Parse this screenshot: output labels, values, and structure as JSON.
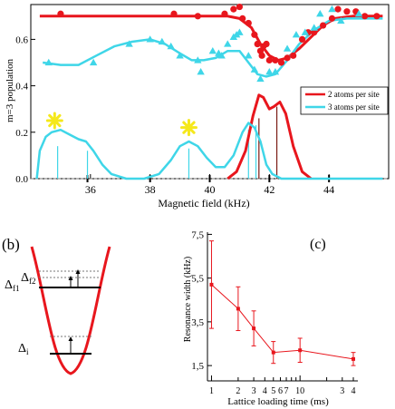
{
  "colors": {
    "red": "#e8161d",
    "cyan": "#3fd6e8",
    "dark_red": "#7a1a14",
    "dashed": "#7a7a7a",
    "star": "#f5e81c"
  },
  "panel_a": {
    "ylabel": "m=3 population",
    "xlabel": "Magnetic field (kHz)",
    "xlim": [
      34.0,
      46.0
    ],
    "ylim": [
      0.0,
      0.75
    ],
    "xticks": [
      {
        "v": 36,
        "t": "36"
      },
      {
        "v": 38,
        "t": "38"
      },
      {
        "v": 40,
        "t": "40"
      },
      {
        "v": 42,
        "t": "42"
      },
      {
        "v": 44,
        "t": "44"
      }
    ],
    "yticks": [
      {
        "v": 0.0,
        "t": "0.0"
      },
      {
        "v": 0.2,
        "t": "0.2"
      },
      {
        "v": 0.4,
        "t": "0.4"
      },
      {
        "v": 0.6,
        "t": "0.6"
      }
    ],
    "legend": [
      {
        "label": "2 atoms per site",
        "color": "red"
      },
      {
        "label": "3 atoms per site",
        "color": "cyan"
      }
    ]
  },
  "panel_b": {
    "label": "(b)",
    "delta_f1": "Δf1",
    "delta_f2": "Δf2",
    "delta_i": "Δi"
  },
  "panel_c": {
    "label": "(c)",
    "ylabel": "Resonance width (kHz)",
    "xlabel": "Lattice loading time (ms)",
    "yticks": [
      {
        "v": 1.5,
        "t": "1,5"
      },
      {
        "v": 3.5,
        "t": "3,5"
      },
      {
        "v": 5.5,
        "t": "5,5"
      },
      {
        "v": 7.5,
        "t": "7,5"
      }
    ],
    "xtick_labels": [
      {
        "v": 1,
        "t": "1"
      },
      {
        "v": 2,
        "t": "2"
      },
      {
        "v": 3,
        "t": "3"
      },
      {
        "v": 4,
        "t": "4"
      },
      {
        "v": 5,
        "t": "5"
      },
      {
        "v": 6,
        "t": "6"
      },
      {
        "v": 7,
        "t": "7"
      },
      {
        "v": 10,
        "t": "10"
      },
      {
        "v": 30,
        "t": "3"
      },
      {
        "v": 40,
        "t": "4"
      }
    ]
  },
  "chart_data": [
    {
      "type": "scatter",
      "xlabel": "Magnetic field (kHz)",
      "ylabel": "m=3 population",
      "xlim": [
        34.0,
        46.0
      ],
      "ylim": [
        0.0,
        0.75
      ],
      "series": [
        {
          "name": "2 atoms per site",
          "color": "red",
          "points": [
            [
              35.0,
              0.71
            ],
            [
              38.8,
              0.71
            ],
            [
              39.6,
              0.7
            ],
            [
              40.5,
              0.71
            ],
            [
              40.8,
              0.73
            ],
            [
              41.0,
              0.74
            ],
            [
              41.1,
              0.69
            ],
            [
              41.3,
              0.67
            ],
            [
              41.5,
              0.62
            ],
            [
              41.6,
              0.58
            ],
            [
              41.7,
              0.55
            ],
            [
              41.75,
              0.53
            ],
            [
              41.8,
              0.57
            ],
            [
              41.9,
              0.58
            ],
            [
              42.0,
              0.51
            ],
            [
              42.2,
              0.51
            ],
            [
              42.4,
              0.5
            ],
            [
              42.6,
              0.52
            ],
            [
              42.8,
              0.53
            ],
            [
              43.1,
              0.6
            ],
            [
              43.3,
              0.63
            ],
            [
              43.5,
              0.63
            ],
            [
              43.8,
              0.66
            ],
            [
              44.1,
              0.69
            ],
            [
              44.3,
              0.73
            ],
            [
              44.6,
              0.72
            ],
            [
              44.9,
              0.72
            ],
            [
              45.2,
              0.7
            ],
            [
              45.6,
              0.7
            ]
          ],
          "fit": [
            [
              34.3,
              0.7
            ],
            [
              40.6,
              0.7
            ],
            [
              41.0,
              0.69
            ],
            [
              41.4,
              0.65
            ],
            [
              41.7,
              0.58
            ],
            [
              42.0,
              0.53
            ],
            [
              42.3,
              0.51
            ],
            [
              42.6,
              0.52
            ],
            [
              43.0,
              0.56
            ],
            [
              43.4,
              0.61
            ],
            [
              43.8,
              0.66
            ],
            [
              44.2,
              0.69
            ],
            [
              44.8,
              0.7
            ],
            [
              45.8,
              0.7
            ]
          ],
          "resonance_fit": [
            [
              40.6,
              0.0
            ],
            [
              40.9,
              0.03
            ],
            [
              41.2,
              0.12
            ],
            [
              41.45,
              0.27
            ],
            [
              41.65,
              0.36
            ],
            [
              41.8,
              0.35
            ],
            [
              42.0,
              0.3
            ],
            [
              42.15,
              0.31
            ],
            [
              42.35,
              0.33
            ],
            [
              42.55,
              0.28
            ],
            [
              42.8,
              0.14
            ],
            [
              43.1,
              0.03
            ],
            [
              43.4,
              0.0
            ]
          ]
        },
        {
          "name": "3 atoms per site",
          "color": "cyan",
          "points": [
            [
              34.6,
              0.5
            ],
            [
              36.1,
              0.5
            ],
            [
              37.3,
              0.58
            ],
            [
              38.0,
              0.6
            ],
            [
              38.4,
              0.59
            ],
            [
              38.7,
              0.57
            ],
            [
              39.0,
              0.53
            ],
            [
              39.6,
              0.51
            ],
            [
              39.7,
              0.46
            ],
            [
              40.1,
              0.55
            ],
            [
              40.3,
              0.54
            ],
            [
              40.4,
              0.53
            ],
            [
              40.6,
              0.58
            ],
            [
              40.8,
              0.61
            ],
            [
              40.9,
              0.62
            ],
            [
              41.0,
              0.63
            ],
            [
              41.3,
              0.53
            ],
            [
              41.5,
              0.47
            ],
            [
              41.7,
              0.43
            ],
            [
              42.0,
              0.46
            ],
            [
              42.2,
              0.46
            ],
            [
              42.6,
              0.56
            ],
            [
              42.9,
              0.62
            ],
            [
              43.2,
              0.63
            ],
            [
              43.5,
              0.65
            ],
            [
              43.7,
              0.71
            ],
            [
              44.1,
              0.73
            ],
            [
              44.4,
              0.68
            ],
            [
              45.0,
              0.71
            ]
          ],
          "fit": [
            [
              34.4,
              0.5
            ],
            [
              35.0,
              0.49
            ],
            [
              35.6,
              0.49
            ],
            [
              36.2,
              0.53
            ],
            [
              36.8,
              0.57
            ],
            [
              37.4,
              0.59
            ],
            [
              38.0,
              0.6
            ],
            [
              38.5,
              0.58
            ],
            [
              39.0,
              0.54
            ],
            [
              39.4,
              0.51
            ],
            [
              39.8,
              0.51
            ],
            [
              40.2,
              0.52
            ],
            [
              40.6,
              0.55
            ],
            [
              41.0,
              0.55
            ],
            [
              41.3,
              0.5
            ],
            [
              41.6,
              0.45
            ],
            [
              41.9,
              0.44
            ],
            [
              42.2,
              0.45
            ],
            [
              42.6,
              0.51
            ],
            [
              43.0,
              0.58
            ],
            [
              43.5,
              0.64
            ],
            [
              44.0,
              0.68
            ],
            [
              44.6,
              0.69
            ],
            [
              45.8,
              0.69
            ]
          ],
          "resonance_fit": [
            [
              34.2,
              0.0
            ],
            [
              34.3,
              0.12
            ],
            [
              34.5,
              0.18
            ],
            [
              34.7,
              0.2
            ],
            [
              35.0,
              0.21
            ],
            [
              35.3,
              0.19
            ],
            [
              35.6,
              0.17
            ],
            [
              35.85,
              0.16
            ],
            [
              36.1,
              0.12
            ],
            [
              36.4,
              0.06
            ],
            [
              36.7,
              0.02
            ],
            [
              37.2,
              0.0
            ],
            [
              37.8,
              0.0
            ],
            [
              38.3,
              0.02
            ],
            [
              38.7,
              0.08
            ],
            [
              39.0,
              0.14
            ],
            [
              39.3,
              0.16
            ],
            [
              39.6,
              0.14
            ],
            [
              39.9,
              0.09
            ],
            [
              40.2,
              0.05
            ],
            [
              40.5,
              0.05
            ],
            [
              40.8,
              0.1
            ],
            [
              41.1,
              0.2
            ],
            [
              41.3,
              0.24
            ],
            [
              41.5,
              0.22
            ],
            [
              41.7,
              0.16
            ],
            [
              41.9,
              0.06
            ],
            [
              42.1,
              0.02
            ],
            [
              42.4,
              0.0
            ],
            [
              45.8,
              0.0
            ]
          ]
        }
      ],
      "stick_markers": [
        {
          "x": 34.9,
          "height": 0.14,
          "color": "cyan"
        },
        {
          "x": 35.9,
          "height": 0.12,
          "color": "cyan"
        },
        {
          "x": 39.3,
          "height": 0.13,
          "color": "cyan"
        },
        {
          "x": 41.3,
          "height": 0.21,
          "color": "cyan"
        },
        {
          "x": 41.55,
          "height": 0.23,
          "color": "cyan"
        },
        {
          "x": 41.65,
          "height": 0.26,
          "color": "dark_red"
        },
        {
          "x": 42.25,
          "height": 0.31,
          "color": "dark_red"
        }
      ],
      "star_markers": [
        {
          "x": 34.8,
          "y": 0.25
        },
        {
          "x": 39.3,
          "y": 0.22
        }
      ],
      "baseline_ticks": [
        35.9,
        38.0,
        40.0,
        42.0,
        44.0
      ]
    },
    {
      "type": "line",
      "xlabel": "Lattice loading time (ms)",
      "ylabel": "Resonance width (kHz)",
      "xscale": "log",
      "xlim": [
        0.9,
        45.0
      ],
      "ylim": [
        0.8,
        7.6
      ],
      "series": [
        {
          "name": "",
          "color": "red",
          "points": [
            {
              "x": 1,
              "y": 5.2,
              "err": 2.0
            },
            {
              "x": 2,
              "y": 4.1,
              "err": 1.0
            },
            {
              "x": 3,
              "y": 3.2,
              "err": 0.8
            },
            {
              "x": 5,
              "y": 2.1,
              "err": 0.5
            },
            {
              "x": 10,
              "y": 2.2,
              "err": 0.55
            },
            {
              "x": 40,
              "y": 1.8,
              "err": 0.3
            }
          ]
        }
      ]
    }
  ]
}
